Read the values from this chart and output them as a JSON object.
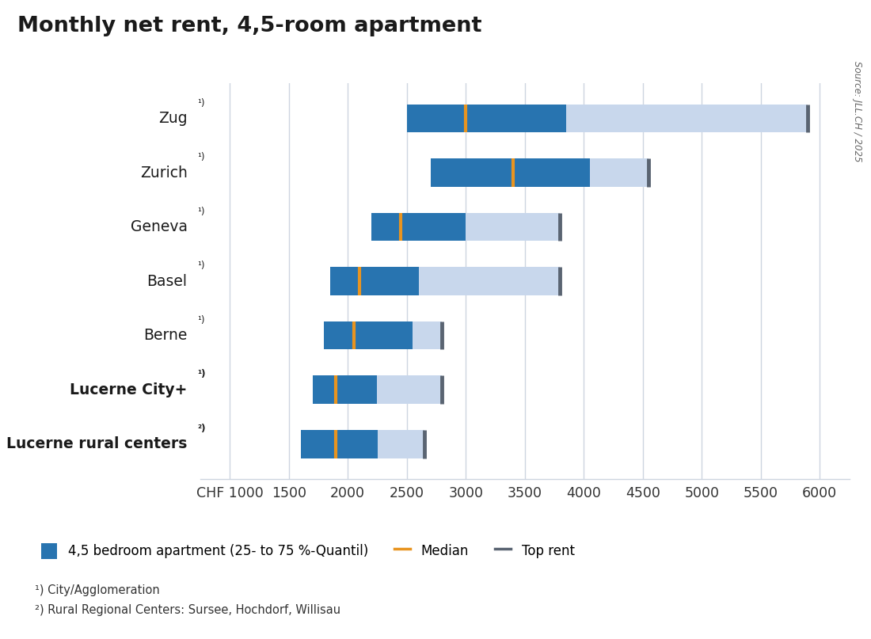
{
  "title": "Monthly net rent, 4,5-room apartment",
  "categories_plain": [
    "Zug",
    "Zurich",
    "Geneva",
    "Basel",
    "Berne",
    "Lucerne City+",
    "Lucerne rural centers"
  ],
  "categories_sup": [
    "¹)",
    "¹)",
    "¹)",
    "¹)",
    "¹)",
    "¹)",
    "²)"
  ],
  "bold_rows": [
    5,
    6
  ],
  "q1": [
    2500,
    2700,
    2200,
    1850,
    1800,
    1700,
    1600
  ],
  "q3": [
    3850,
    4050,
    3000,
    2600,
    2550,
    2250,
    2250
  ],
  "median": [
    3000,
    3400,
    2450,
    2100,
    2050,
    1900,
    1900
  ],
  "top_rent": [
    5900,
    4550,
    3800,
    3800,
    2800,
    2800,
    2650
  ],
  "iqr_color": "#2874B0",
  "ext_color": "#C8D7EC",
  "top_color": "#5A6472",
  "median_color": "#E89420",
  "bg_color": "#FFFFFF",
  "grid_color": "#CDD5E0",
  "xtick_labels": [
    "CHF 1000",
    "1500",
    "2000",
    "2500",
    "3000",
    "3500",
    "4000",
    "4500",
    "5000",
    "5500",
    "6000"
  ],
  "xtick_vals": [
    1000,
    1500,
    2000,
    2500,
    3000,
    3500,
    4000,
    4500,
    5000,
    5500,
    6000
  ],
  "xlim": [
    750,
    6250
  ],
  "bar_height": 0.52,
  "legend_label_blue": "4,5 bedroom apartment (25- to 75 %-Quantil)",
  "legend_label_median": "Median",
  "legend_label_top": "Top rent",
  "footnote1": "¹) City/Agglomeration",
  "footnote2": "²) Rural Regional Centers: Sursee, Hochdorf, Willisau",
  "source_text": "Source: JLL.CH / 2025"
}
